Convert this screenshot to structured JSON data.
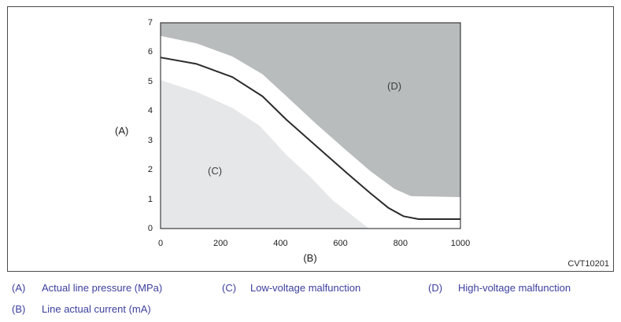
{
  "figure_code": "CVT10201",
  "chart_data": {
    "type": "area",
    "xlabel": "(B)",
    "ylabel": "(A)",
    "xlim": [
      0,
      1000
    ],
    "ylim": [
      0,
      7
    ],
    "x_ticks": [
      0,
      200,
      400,
      600,
      800,
      1000
    ],
    "y_ticks": [
      7,
      6,
      5,
      4,
      3,
      2,
      1,
      0
    ],
    "grid": false,
    "region_labels": {
      "low": "(C)",
      "high": "(D)"
    },
    "series": [
      {
        "name": "threshold-curve",
        "description": "normal line-pressure vs current curve",
        "points": [
          [
            0,
            5.82
          ],
          [
            120,
            5.6
          ],
          [
            240,
            5.15
          ],
          [
            340,
            4.5
          ],
          [
            420,
            3.7
          ],
          [
            520,
            2.8
          ],
          [
            620,
            1.9
          ],
          [
            700,
            1.2
          ],
          [
            760,
            0.7
          ],
          [
            810,
            0.42
          ],
          [
            860,
            0.32
          ],
          [
            1000,
            0.32
          ]
        ]
      },
      {
        "name": "low-voltage-boundary",
        "description": "upper edge of low-voltage malfunction region (C)",
        "points": [
          [
            0,
            5.05
          ],
          [
            120,
            4.65
          ],
          [
            240,
            4.1
          ],
          [
            330,
            3.5
          ],
          [
            420,
            2.5
          ],
          [
            500,
            1.75
          ],
          [
            575,
            0.95
          ],
          [
            695,
            0
          ]
        ]
      },
      {
        "name": "high-voltage-boundary",
        "description": "lower edge of high-voltage malfunction region (D)",
        "points": [
          [
            0,
            6.55
          ],
          [
            120,
            6.3
          ],
          [
            240,
            5.85
          ],
          [
            340,
            5.25
          ],
          [
            420,
            4.5
          ],
          [
            520,
            3.55
          ],
          [
            620,
            2.65
          ],
          [
            700,
            1.95
          ],
          [
            780,
            1.35
          ],
          [
            835,
            1.1
          ],
          [
            1000,
            1.07
          ]
        ]
      }
    ],
    "colors": {
      "low_region": "#e6e7e8",
      "high_region": "#b9bcbd",
      "curve": "#2b2b2b",
      "plot_border": "#1a1a1a"
    }
  },
  "legend": {
    "items": [
      {
        "key": "(A)",
        "label": "Actual line pressure (MPa)"
      },
      {
        "key": "(B)",
        "label": "Line actual current (mA)"
      },
      {
        "key": "(C)",
        "label": "Low-voltage malfunction"
      },
      {
        "key": "(D)",
        "label": "High-voltage malfunction"
      }
    ]
  }
}
